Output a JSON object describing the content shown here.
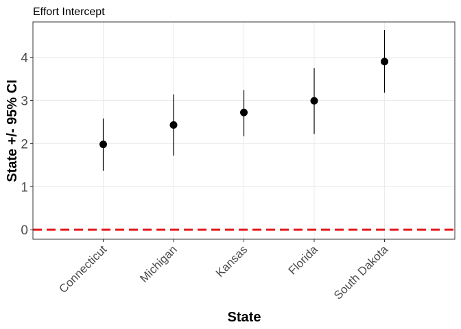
{
  "chart_data": {
    "type": "scatter",
    "title": "Effort Intercept",
    "xlabel": "State",
    "ylabel": "State +/- 95% CI",
    "categories": [
      "Connecticut",
      "Michigan",
      "Kansas",
      "Florida",
      "South Dakota"
    ],
    "series": [
      {
        "values": [
          1.98,
          2.43,
          2.72,
          2.99,
          3.9
        ],
        "lower": [
          1.37,
          1.72,
          2.17,
          2.22,
          3.18
        ],
        "upper": [
          2.58,
          3.14,
          3.24,
          3.75,
          4.63
        ]
      }
    ],
    "ylim": [
      -0.22,
      4.82
    ],
    "yticks": [
      "0",
      "1",
      "2",
      "3",
      "4"
    ],
    "reference_line": {
      "y": 0,
      "color": "#e41a1c",
      "style": "dashed"
    },
    "grid": true,
    "legend": "none",
    "colors": {
      "point": "#000000",
      "grid": "#ebebeb",
      "border": "#333333"
    }
  }
}
